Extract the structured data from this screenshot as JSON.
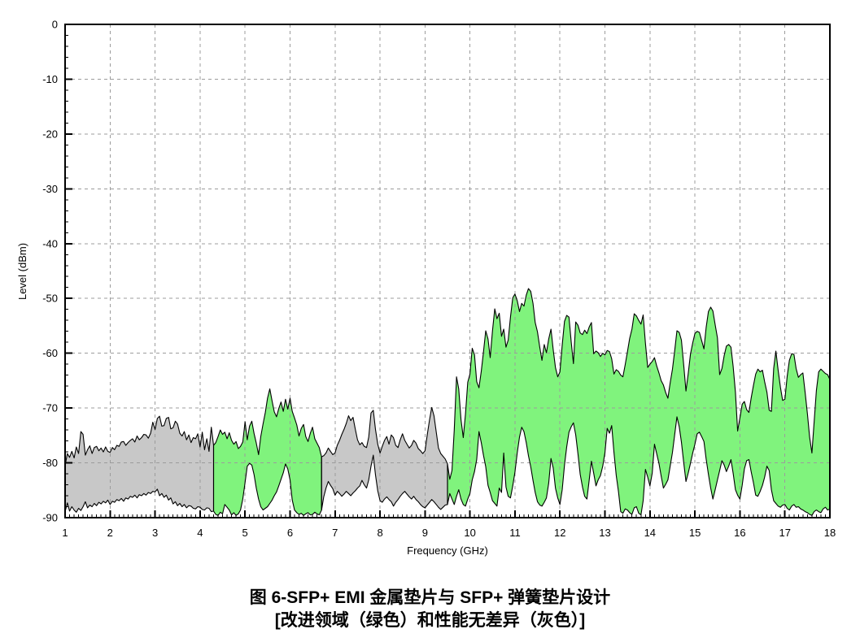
{
  "caption": {
    "line1": "图 6-SFP+ EMI 金属垫片与 SFP+ 弹簧垫片设计",
    "line2": "[改进领域（绿色）和性能无差异（灰色）]"
  },
  "chart_data": {
    "type": "area",
    "title": "",
    "xlabel": "Frequency (GHz)",
    "ylabel": "Level (dBm)",
    "xlim": [
      1,
      18
    ],
    "ylim": [
      -90,
      0
    ],
    "grid": true,
    "legend_position": "none",
    "x_tick_labels": [
      "1",
      "2",
      "3",
      "4",
      "5",
      "6",
      "7",
      "8",
      "9",
      "10",
      "11",
      "12",
      "13",
      "14",
      "15",
      "16",
      "17",
      "18"
    ],
    "y_tick_labels": [
      "0",
      "-10",
      "-20",
      "-30",
      "-40",
      "-50",
      "-60",
      "-70",
      "-80",
      "-90"
    ],
    "x_minor_tick_step": 0.1,
    "y_minor_tick_step": 2,
    "freq_start": 1.0,
    "freq_step": 0.05,
    "freq_unit": "GHz",
    "regions": [
      {
        "from_ghz": 1.0,
        "to_ghz": 4.3,
        "label": "性能无差异 (灰色)",
        "color": "#C8C8C8"
      },
      {
        "from_ghz": 4.3,
        "to_ghz": 6.7,
        "label": "改进领域 (绿色)",
        "color": "#80F37D"
      },
      {
        "from_ghz": 6.7,
        "to_ghz": 9.5,
        "label": "性能无差异 (灰色)",
        "color": "#C8C8C8"
      },
      {
        "from_ghz": 9.5,
        "to_ghz": 18.0,
        "label": "改进领域 (绿色)",
        "color": "#80F37D"
      }
    ],
    "colors": {
      "improvement_green": "#80F37D",
      "no_difference_gray": "#C8C8C8",
      "outline": "#000000",
      "grid": "#9C9C9C"
    },
    "upper_envelope_dbm": [
      -80.5,
      -78.3,
      -79.0,
      -77.9,
      -79.1,
      -77.1,
      -78.3,
      -74.3,
      -74.8,
      -78.6,
      -77.6,
      -76.9,
      -78.3,
      -77.2,
      -77.0,
      -77.8,
      -77.3,
      -78.0,
      -77.1,
      -77.9,
      -78.1,
      -77.2,
      -77.6,
      -76.8,
      -77.0,
      -76.2,
      -76.1,
      -76.8,
      -76.3,
      -75.9,
      -75.6,
      -76.2,
      -75.1,
      -75.8,
      -75.4,
      -74.8,
      -74.9,
      -75.5,
      -74.6,
      -72.6,
      -73.9,
      -71.9,
      -71.5,
      -73.3,
      -73.2,
      -71.9,
      -71.7,
      -73.8,
      -73.6,
      -72.4,
      -72.9,
      -74.6,
      -75.1,
      -74.3,
      -75.8,
      -74.9,
      -76.3,
      -75.4,
      -75.6,
      -74.7,
      -77.1,
      -74.4,
      -77.6,
      -75.6,
      -77.9,
      -73.5,
      -76.8,
      -76.3,
      -75.2,
      -74.0,
      -74.8,
      -74.4,
      -75.6,
      -74.5,
      -75.9,
      -76.6,
      -76.1,
      -77.4,
      -77.0,
      -76.2,
      -72.5,
      -75.8,
      -73.3,
      -72.4,
      -74.6,
      -76.4,
      -78.5,
      -75.2,
      -72.9,
      -70.8,
      -68.2,
      -66.5,
      -68.7,
      -70.7,
      -71.6,
      -70.1,
      -68.9,
      -70.6,
      -68.4,
      -70.2,
      -68.2,
      -70.6,
      -71.8,
      -73.1,
      -75.1,
      -73.7,
      -73.0,
      -75.2,
      -76.1,
      -74.6,
      -73.5,
      -75.6,
      -76.4,
      -77.2,
      -78.9,
      -78.7,
      -78.2,
      -77.3,
      -77.9,
      -78.5,
      -78.2,
      -76.8,
      -75.9,
      -74.8,
      -73.9,
      -72.8,
      -71.4,
      -72.3,
      -71.7,
      -73.8,
      -75.8,
      -76.7,
      -76.3,
      -77.0,
      -77.2,
      -75.3,
      -70.9,
      -70.4,
      -73.9,
      -76.6,
      -78.2,
      -77.0,
      -75.9,
      -75.2,
      -76.6,
      -74.9,
      -75.4,
      -76.8,
      -77.2,
      -75.8,
      -74.7,
      -75.9,
      -76.6,
      -77.3,
      -76.8,
      -75.9,
      -76.4,
      -77.4,
      -77.8,
      -78.3,
      -77.8,
      -74.9,
      -72.2,
      -69.9,
      -71.4,
      -74.4,
      -77.3,
      -78.3,
      -78.8,
      -79.3,
      -80.2,
      -83.0,
      -81.4,
      -74.0,
      -64.3,
      -66.5,
      -72.1,
      -75.4,
      -71.1,
      -65.3,
      -63.8,
      -59.1,
      -60.3,
      -65.2,
      -66.3,
      -63.3,
      -59.8,
      -55.9,
      -57.4,
      -60.8,
      -55.9,
      -51.9,
      -53.7,
      -52.7,
      -56.9,
      -55.6,
      -58.9,
      -57.6,
      -53.4,
      -49.9,
      -49.2,
      -50.4,
      -52.4,
      -50.9,
      -51.4,
      -49.4,
      -48.2,
      -48.7,
      -50.9,
      -54.4,
      -56.1,
      -58.9,
      -61.3,
      -58.4,
      -59.9,
      -57.4,
      -55.6,
      -59.3,
      -62.6,
      -64.3,
      -63.4,
      -58.5,
      -54.2,
      -53.1,
      -53.4,
      -58.0,
      -61.9,
      -54.3,
      -54.9,
      -56.3,
      -56.6,
      -55.8,
      -56.4,
      -55.2,
      -54.4,
      -60.1,
      -59.6,
      -59.9,
      -60.6,
      -60.0,
      -60.3,
      -59.5,
      -59.7,
      -61.0,
      -63.8,
      -63.0,
      -63.3,
      -64.0,
      -64.3,
      -62.1,
      -59.7,
      -57.3,
      -55.6,
      -52.8,
      -53.2,
      -54.0,
      -54.7,
      -53.0,
      -58.2,
      -62.6,
      -62.0,
      -61.5,
      -60.8,
      -62.3,
      -63.6,
      -65.0,
      -65.8,
      -67.2,
      -68.2,
      -65.4,
      -62.9,
      -59.6,
      -55.9,
      -56.2,
      -57.6,
      -62.1,
      -66.9,
      -63.8,
      -60.2,
      -58.1,
      -56.4,
      -56.0,
      -56.2,
      -57.7,
      -59.2,
      -55.3,
      -52.4,
      -51.6,
      -52.3,
      -54.8,
      -57.2,
      -63.9,
      -62.8,
      -60.4,
      -58.7,
      -58.4,
      -58.9,
      -62.4,
      -67.1,
      -74.2,
      -71.8,
      -69.3,
      -68.8,
      -70.3,
      -70.8,
      -68.2,
      -65.9,
      -63.8,
      -62.9,
      -63.4,
      -63.1,
      -65.2,
      -67.1,
      -70.4,
      -70.6,
      -62.8,
      -59.6,
      -63.1,
      -66.2,
      -68.6,
      -68.4,
      -64.2,
      -61.3,
      -60.1,
      -60.2,
      -62.8,
      -64.4,
      -63.9,
      -63.6,
      -67.2,
      -71.1,
      -75.3,
      -78.2,
      -72.6,
      -66.8,
      -63.4,
      -62.9,
      -63.3,
      -63.7,
      -63.9,
      -64.8
    ],
    "lower_envelope_dbm": [
      -88.9,
      -87.3,
      -88.8,
      -88.0,
      -88.6,
      -89.0,
      -88.3,
      -88.7,
      -88.0,
      -87.1,
      -88.2,
      -87.7,
      -88.0,
      -87.4,
      -87.8,
      -87.2,
      -87.5,
      -87.0,
      -87.3,
      -86.8,
      -87.6,
      -87.0,
      -87.2,
      -86.7,
      -86.9,
      -86.5,
      -87.0,
      -86.4,
      -86.6,
      -86.1,
      -86.3,
      -85.9,
      -86.4,
      -85.8,
      -86.0,
      -85.6,
      -85.9,
      -85.4,
      -85.6,
      -85.2,
      -85.3,
      -84.8,
      -86.0,
      -85.6,
      -86.3,
      -85.9,
      -86.8,
      -86.4,
      -87.5,
      -87.1,
      -87.8,
      -87.4,
      -88.0,
      -87.6,
      -88.2,
      -87.8,
      -87.9,
      -88.3,
      -88.4,
      -88.0,
      -88.1,
      -88.5,
      -88.6,
      -88.2,
      -88.3,
      -88.9,
      -88.8,
      -89.4,
      -89.6,
      -89.0,
      -89.3,
      -87.6,
      -88.1,
      -88.6,
      -89.5,
      -89.1,
      -89.6,
      -89.3,
      -88.6,
      -86.6,
      -83.6,
      -80.6,
      -80.1,
      -80.4,
      -82.1,
      -84.6,
      -86.6,
      -88.0,
      -88.6,
      -88.3,
      -88.0,
      -87.4,
      -86.8,
      -86.0,
      -85.3,
      -84.2,
      -83.0,
      -81.8,
      -80.2,
      -81.1,
      -83.1,
      -86.8,
      -88.6,
      -89.1,
      -89.4,
      -89.2,
      -89.6,
      -89.3,
      -89.1,
      -89.5,
      -89.4,
      -89.0,
      -89.3,
      -89.5,
      -88.6,
      -86.2,
      -84.6,
      -83.4,
      -84.1,
      -84.7,
      -85.9,
      -85.2,
      -85.6,
      -86.1,
      -85.7,
      -85.2,
      -85.6,
      -86.0,
      -85.5,
      -85.1,
      -84.6,
      -84.2,
      -83.2,
      -84.0,
      -84.6,
      -83.1,
      -80.6,
      -78.6,
      -82.2,
      -85.1,
      -86.9,
      -87.2,
      -86.6,
      -86.2,
      -86.7,
      -87.1,
      -87.9,
      -87.2,
      -86.7,
      -86.1,
      -85.6,
      -85.2,
      -85.7,
      -86.2,
      -86.6,
      -86.1,
      -86.7,
      -87.1,
      -87.6,
      -88.0,
      -88.2,
      -87.7,
      -87.2,
      -86.7,
      -87.1,
      -87.6,
      -88.1,
      -88.5,
      -88.1,
      -87.7,
      -87.6,
      -85.6,
      -86.6,
      -87.6,
      -86.1,
      -84.9,
      -86.6,
      -87.6,
      -87.9,
      -86.6,
      -85.6,
      -83.1,
      -81.6,
      -79.4,
      -74.3,
      -76.3,
      -78.6,
      -80.7,
      -84.1,
      -85.4,
      -86.9,
      -87.4,
      -87.9,
      -84.6,
      -85.4,
      -78.2,
      -84.4,
      -86.1,
      -86.4,
      -84.2,
      -81.7,
      -78.2,
      -75.3,
      -73.5,
      -74.3,
      -76.3,
      -78.7,
      -80.7,
      -83.2,
      -85.4,
      -87.1,
      -87.7,
      -87.9,
      -87.2,
      -86.4,
      -83.7,
      -79.2,
      -80.9,
      -84.6,
      -86.4,
      -87.6,
      -84.9,
      -80.4,
      -77.1,
      -74.4,
      -73.4,
      -72.7,
      -74.9,
      -78.4,
      -82.1,
      -84.4,
      -86.1,
      -86.6,
      -83.1,
      -79.7,
      -81.9,
      -84.2,
      -83.1,
      -82.3,
      -80.6,
      -78.2,
      -73.7,
      -74.6,
      -73.2,
      -78.1,
      -82.3,
      -85.2,
      -88.9,
      -89.2,
      -88.4,
      -88.6,
      -89.1,
      -89.4,
      -88.2,
      -88.0,
      -89.2,
      -89.5,
      -86.9,
      -81.2,
      -82.6,
      -84.2,
      -81.9,
      -76.6,
      -78.3,
      -80.1,
      -82.4,
      -84.6,
      -83.9,
      -83.1,
      -80.6,
      -78.1,
      -74.9,
      -71.6,
      -73.4,
      -76.2,
      -79.9,
      -83.4,
      -81.9,
      -80.1,
      -78.2,
      -76.6,
      -74.7,
      -74.4,
      -75.2,
      -76.1,
      -79.3,
      -82.1,
      -84.6,
      -86.6,
      -84.9,
      -83.1,
      -81.4,
      -79.6,
      -80.4,
      -81.6,
      -80.6,
      -79.4,
      -81.9,
      -84.9,
      -85.9,
      -86.6,
      -84.1,
      -81.1,
      -79.6,
      -79.4,
      -81.6,
      -83.6,
      -85.9,
      -86.1,
      -85.2,
      -84.1,
      -82.6,
      -80.6,
      -81.4,
      -84.9,
      -86.9,
      -87.4,
      -87.9,
      -88.1,
      -87.7,
      -87.6,
      -88.3,
      -88.6,
      -87.9,
      -87.6,
      -88.1,
      -88.0,
      -88.4,
      -88.6,
      -88.9,
      -89.1,
      -89.4,
      -89.6,
      -88.9,
      -88.6,
      -88.9,
      -89.1,
      -88.4,
      -88.1,
      -88.6,
      -88.4
    ]
  }
}
